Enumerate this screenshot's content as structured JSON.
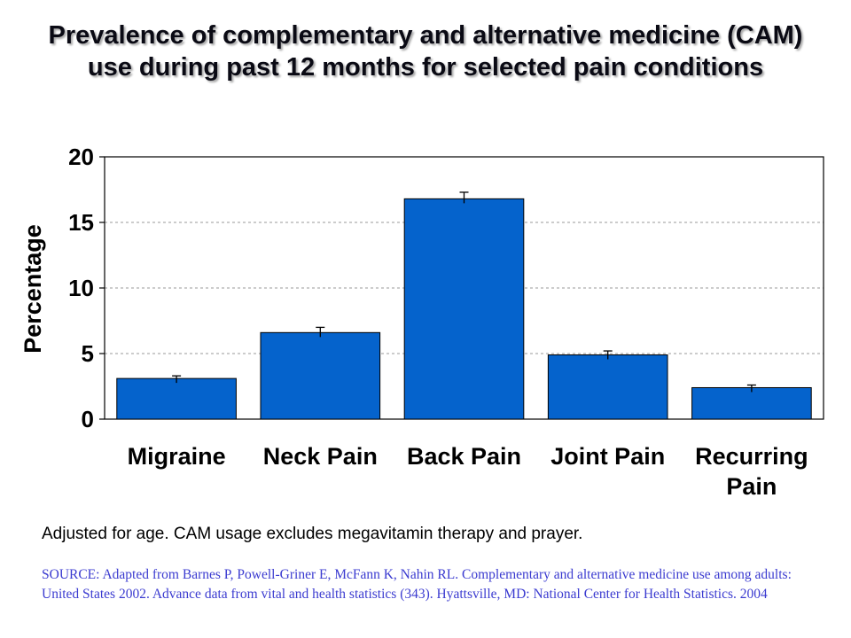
{
  "slide": {
    "title": "Prevalence of complementary and alternative medicine (CAM) use during past 12 months for selected pain conditions",
    "footnote": "Adjusted for age. CAM usage excludes megavitamin therapy and prayer.",
    "source": "SOURCE: Adapted from Barnes P, Powell-Griner E, McFann K, Nahin RL. Complementary and alternative medicine use among adults: United States 2002. Advance data from vital and health statistics (343). Hyattsville, MD: National Center for Health Statistics. 2004"
  },
  "chart_data": {
    "type": "bar",
    "title": "Prevalence of complementary and alternative medicine (CAM) use during past 12 months for selected pain conditions",
    "xlabel": "",
    "ylabel": "Percentage",
    "categories": [
      [
        "Migraine"
      ],
      [
        "Neck Pain"
      ],
      [
        "Back Pain"
      ],
      [
        "Joint Pain"
      ],
      [
        "Recurring",
        "Pain"
      ]
    ],
    "values": [
      3.1,
      6.6,
      16.8,
      4.9,
      2.4
    ],
    "error_upper": [
      0.2,
      0.4,
      0.5,
      0.3,
      0.2
    ],
    "ylim": [
      0,
      20
    ],
    "yticks": [
      0,
      5,
      10,
      15,
      20
    ],
    "grid": true,
    "bar_color": "#0563cc",
    "legend": "none"
  }
}
